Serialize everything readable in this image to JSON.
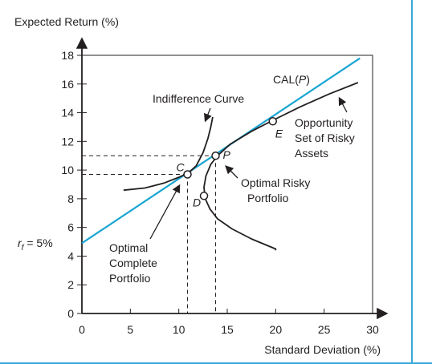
{
  "chart_data": {
    "type": "line",
    "xlabel": "Standard Deviation (%)",
    "ylabel": "Expected Return (%)",
    "xlim": [
      0,
      30
    ],
    "ylim": [
      0,
      18
    ],
    "x_ticks": [
      0,
      5,
      10,
      15,
      20,
      25,
      30
    ],
    "y_ticks": [
      0,
      2,
      4,
      6,
      8,
      10,
      12,
      14,
      16,
      18
    ],
    "grid": false,
    "risk_free": {
      "label": "r",
      "subscript": "f",
      "value_text": " = 5%",
      "value": 5
    },
    "series": [
      {
        "name": "CAL(P)",
        "style": "line",
        "color": "#1aa5d2",
        "points": [
          [
            0,
            4.9
          ],
          [
            28.7,
            17.8
          ]
        ]
      },
      {
        "name": "Opportunity Set of Risky Assets",
        "style": "curve",
        "color": "#231f20",
        "points": [
          [
            12.7,
            8.2
          ],
          [
            12.8,
            7.9
          ],
          [
            13.2,
            7.3
          ],
          [
            14.0,
            6.6
          ],
          [
            15.5,
            5.9
          ],
          [
            17.5,
            5.2
          ],
          [
            20.0,
            4.5
          ],
          [
            20.0,
            4.4
          ]
        ],
        "upper_points": [
          [
            12.7,
            8.2
          ],
          [
            12.6,
            8.8
          ],
          [
            12.8,
            9.6
          ],
          [
            13.3,
            10.4
          ],
          [
            14.0,
            11.0
          ],
          [
            15.3,
            11.8
          ],
          [
            17.5,
            12.7
          ],
          [
            19.8,
            13.5
          ],
          [
            22.5,
            14.4
          ],
          [
            25.5,
            15.3
          ],
          [
            28.5,
            16.1
          ]
        ]
      },
      {
        "name": "Indifference Curve",
        "style": "curve",
        "color": "#231f20",
        "points": [
          [
            4.3,
            8.6
          ],
          [
            6.5,
            8.75
          ],
          [
            8.5,
            9.1
          ],
          [
            10.0,
            9.5
          ],
          [
            11.0,
            9.8
          ],
          [
            11.8,
            10.3
          ],
          [
            12.5,
            11.2
          ],
          [
            13.0,
            12.2
          ],
          [
            13.3,
            13.0
          ],
          [
            13.5,
            13.7
          ]
        ]
      }
    ],
    "points": [
      {
        "label": "C",
        "x": 10.9,
        "y": 9.7
      },
      {
        "label": "P",
        "x": 13.8,
        "y": 11.0
      },
      {
        "label": "D",
        "x": 12.6,
        "y": 8.2
      },
      {
        "label": "E",
        "x": 19.7,
        "y": 13.4
      }
    ],
    "annotations": {
      "cal": {
        "prefix": "CAL(",
        "italic": "P",
        "suffix": ")"
      },
      "indifference": "Indifference Curve",
      "opportunity": [
        "Opportunity",
        "Set of Risky",
        "Assets"
      ],
      "optimal_risky": [
        "Optimal Risky",
        "Portfolio"
      ],
      "optimal_complete": [
        "Optimal",
        "Complete",
        "Portfolio"
      ]
    },
    "colors": {
      "cal": "#1aa5d2",
      "curves": "#231f20",
      "frame": "#3aa8d8"
    }
  }
}
